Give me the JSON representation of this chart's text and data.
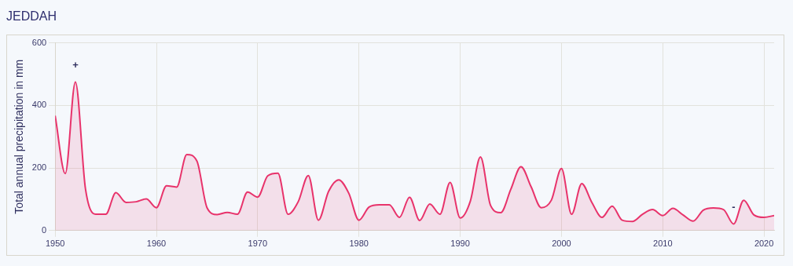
{
  "chart_data": {
    "type": "area",
    "title": "JEDDAH",
    "ylabel": "Total annual precipitation in mm",
    "x": [
      1950,
      1951,
      1952,
      1953,
      1954,
      1955,
      1956,
      1957,
      1958,
      1959,
      1960,
      1961,
      1962,
      1963,
      1964,
      1965,
      1966,
      1967,
      1968,
      1969,
      1970,
      1971,
      1972,
      1973,
      1974,
      1975,
      1976,
      1977,
      1978,
      1979,
      1980,
      1981,
      1982,
      1983,
      1984,
      1985,
      1986,
      1987,
      1988,
      1989,
      1990,
      1991,
      1992,
      1993,
      1994,
      1995,
      1996,
      1997,
      1998,
      1999,
      2000,
      2001,
      2002,
      2003,
      2004,
      2005,
      2006,
      2007,
      2008,
      2009,
      2010,
      2011,
      2012,
      2013,
      2014,
      2015,
      2016,
      2017,
      2018,
      2019,
      2020,
      2021
    ],
    "series": [
      {
        "color": "#e8336b",
        "values": [
          367,
          182,
          475,
          132,
          52,
          52,
          121,
          90,
          92,
          101,
          73,
          143,
          139,
          243,
          222,
          73,
          51,
          58,
          52,
          123,
          107,
          175,
          183,
          52,
          92,
          176,
          33,
          125,
          162,
          119,
          33,
          75,
          82,
          82,
          42,
          106,
          32,
          85,
          52,
          154,
          40,
          94,
          235,
          80,
          57,
          132,
          204,
          140,
          73,
          97,
          198,
          52,
          150,
          90,
          42,
          78,
          33,
          29,
          52,
          67,
          48,
          71,
          50,
          30,
          65,
          72,
          67,
          21,
          97,
          50,
          42,
          48
        ]
      }
    ],
    "xlim": [
      1950,
      2021
    ],
    "xticks": [
      1950,
      1960,
      1970,
      1980,
      1990,
      2000,
      2010,
      2020
    ],
    "ylim": [
      0,
      600
    ],
    "yticks": [
      0,
      200,
      400,
      600
    ],
    "grid": true,
    "legend": false,
    "marker": "none",
    "line_style": "solid",
    "annotations": [
      {
        "text": "+",
        "x": 1952,
        "y": 475
      },
      {
        "text": "-",
        "x": 2017,
        "y": 21
      }
    ]
  }
}
